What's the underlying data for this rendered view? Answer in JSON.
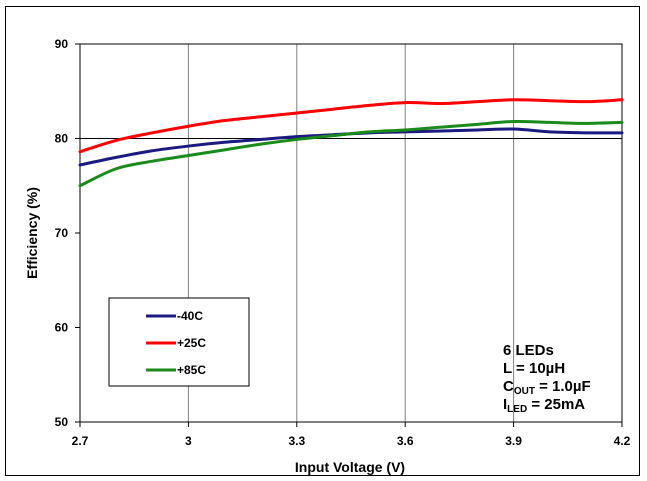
{
  "chart_data": {
    "type": "line",
    "xlabel": "Input Voltage (V)",
    "ylabel": "Efficiency (%)",
    "xlim": [
      2.7,
      4.2
    ],
    "ylim": [
      50,
      90
    ],
    "xticks": [
      "2.7",
      "3",
      "3.3",
      "3.6",
      "3.9",
      "4.2"
    ],
    "yticks": [
      "50",
      "60",
      "70",
      "80",
      "90"
    ],
    "grid": "vertical and horizontal at y=80",
    "legend_position": "bottom-left",
    "series": [
      {
        "name": "-40C",
        "color": "#1a1a80",
        "x": [
          2.7,
          2.8,
          2.9,
          3.0,
          3.1,
          3.2,
          3.3,
          3.4,
          3.5,
          3.6,
          3.7,
          3.8,
          3.9,
          4.0,
          4.1,
          4.2
        ],
        "y": [
          77.2,
          78.0,
          78.7,
          79.2,
          79.6,
          79.9,
          80.2,
          80.4,
          80.6,
          80.7,
          80.8,
          80.9,
          81.0,
          80.7,
          80.6,
          80.6
        ]
      },
      {
        "name": "+25C",
        "color": "#ff0000",
        "x": [
          2.7,
          2.8,
          2.9,
          3.0,
          3.1,
          3.2,
          3.3,
          3.4,
          3.5,
          3.6,
          3.7,
          3.8,
          3.9,
          4.0,
          4.1,
          4.2
        ],
        "y": [
          78.6,
          79.8,
          80.6,
          81.3,
          81.9,
          82.3,
          82.7,
          83.1,
          83.5,
          83.8,
          83.7,
          83.9,
          84.1,
          84.0,
          83.9,
          84.1
        ]
      },
      {
        "name": "+85C",
        "color": "#1a8a1a",
        "x": [
          2.7,
          2.8,
          2.9,
          3.0,
          3.1,
          3.2,
          3.3,
          3.4,
          3.5,
          3.6,
          3.7,
          3.8,
          3.9,
          4.0,
          4.1,
          4.2
        ],
        "y": [
          75.0,
          76.8,
          77.6,
          78.2,
          78.8,
          79.4,
          79.9,
          80.3,
          80.7,
          80.9,
          81.2,
          81.5,
          81.8,
          81.7,
          81.6,
          81.7
        ]
      }
    ],
    "annotation": {
      "line1": "6 LEDs",
      "line2": "L = 10µH",
      "line3_main": "C",
      "line3_sub": "OUT",
      "line3_rest": " = 1.0µF",
      "line4_main": "I",
      "line4_sub": "LED",
      "line4_rest": " = 25mA"
    }
  }
}
